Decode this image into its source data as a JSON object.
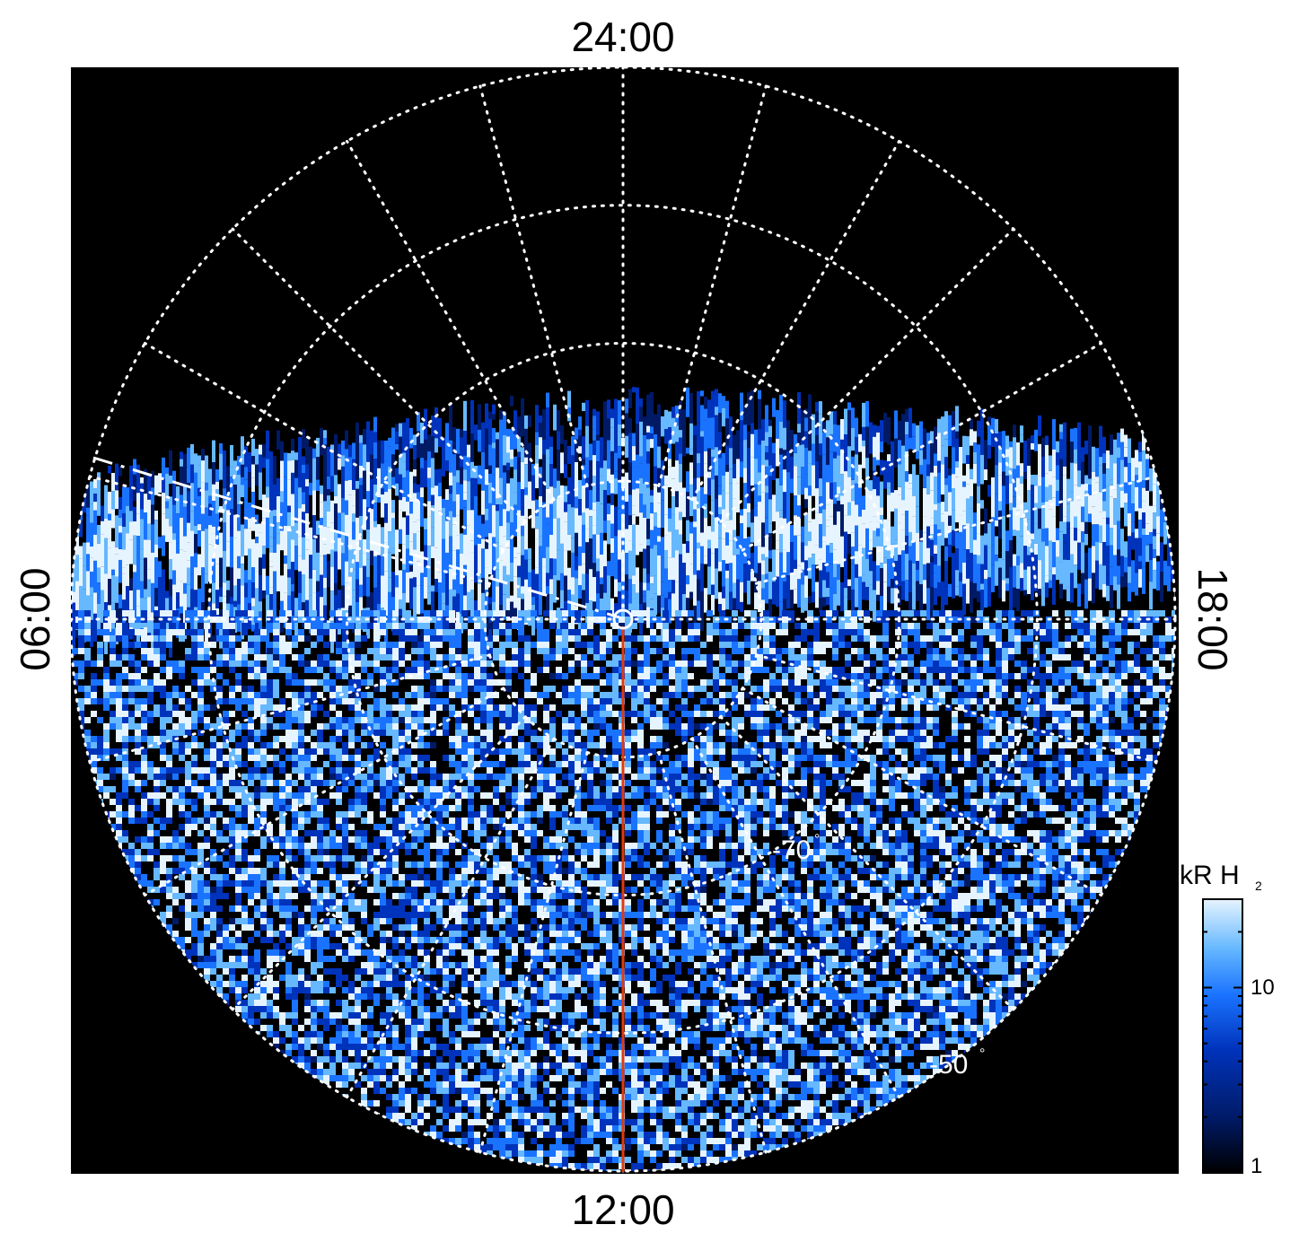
{
  "chart_data": {
    "type": "heatmap",
    "projection": "polar",
    "local_time_labels": {
      "top": "24:00",
      "bottom": "12:00",
      "left": "06:00",
      "right": "18:00"
    },
    "latitude_labels": [
      {
        "text": "-70",
        "degree": "°",
        "value": -70
      },
      {
        "text": "-50",
        "degree": "°",
        "value": -50
      }
    ],
    "latitude_circles": [
      -80,
      -70,
      -60,
      -50
    ],
    "meridian_spacing_hours": 1,
    "grid": "on",
    "grid_color": "#ffffff",
    "background_color": "#000000",
    "reference_line_color": "#e03a10",
    "colorbar": {
      "title": "kR H",
      "title_subscript": "2",
      "scale": "log",
      "range": [
        1,
        30
      ],
      "ticks": [
        {
          "value": 1,
          "label": "1"
        },
        {
          "value": 10,
          "label": "10"
        }
      ],
      "colors": [
        "#000000",
        "#001a66",
        "#0033bb",
        "#1a73ff",
        "#66b8ff",
        "#e6f4ff"
      ]
    }
  }
}
